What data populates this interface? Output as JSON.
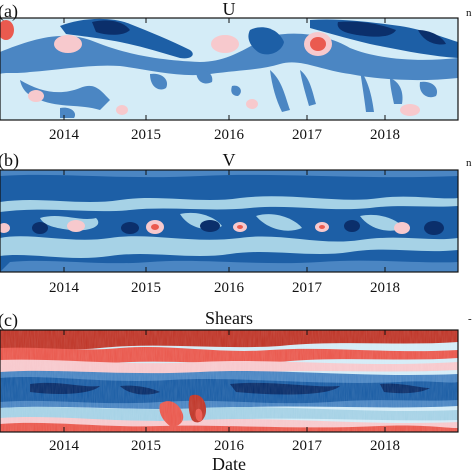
{
  "figure": {
    "xlabel": "Date",
    "date_ticks": [
      "2014",
      "2015",
      "2016",
      "2017",
      "2018"
    ],
    "right_edge_marks": [
      "n",
      "n",
      "-"
    ]
  },
  "colors": {
    "deep_blue": "#0b2f6b",
    "dark_blue": "#1d5fa6",
    "mid_blue": "#4b86c3",
    "light_blue": "#a6d2e6",
    "pale_blue": "#d4ecf7",
    "pale_red": "#f7c9cd",
    "red": "#ea5a4f",
    "dark_red": "#c0382b",
    "frame": "#111111"
  },
  "chart_data": [
    {
      "type": "heatmap",
      "panel": "(a)",
      "title": "U",
      "x_range": [
        "2013",
        "2018-12"
      ],
      "x_ticks": [
        "2014",
        "2015",
        "2016",
        "2017",
        "2018"
      ],
      "description_of_features": {
        "strong_negative_bands": [
          "2013-10 to 2014-09",
          "2016-09 to 2017-09",
          "2017-05 to 2018-12"
        ],
        "positive_patches": [
          "2013",
          "2014-05",
          "2015-04",
          "2016-06",
          "2017-03"
        ]
      }
    },
    {
      "type": "heatmap",
      "panel": "(b)",
      "title": "V",
      "x_range": [
        "2013",
        "2018-12"
      ],
      "x_ticks": [
        "2014",
        "2015",
        "2016",
        "2017",
        "2018"
      ],
      "description_of_features": {
        "dominant_level": "negative (blue) throughout",
        "positive_spots": [
          "2013-03",
          "2014-03",
          "2015-02",
          "2016-02",
          "2017-03",
          "2018-02"
        ]
      }
    },
    {
      "type": "heatmap",
      "panel": "(c)",
      "title": "Shears",
      "x_range": [
        "2013",
        "2018-12"
      ],
      "x_ticks": [
        "2014",
        "2015",
        "2016",
        "2017",
        "2018"
      ],
      "description_of_features": {
        "upper_band": "positive (red)",
        "middle_band": "negative (blue)",
        "lower_band": "positive (red), strongest near 2015-02 to 2015-09"
      }
    }
  ],
  "panels": [
    {
      "tag": "(a)",
      "title": "U",
      "side_mark": "n"
    },
    {
      "tag": "(b)",
      "title": "V",
      "side_mark": "n"
    },
    {
      "tag": "(c)",
      "title": "Shears",
      "side_mark": "-"
    }
  ]
}
